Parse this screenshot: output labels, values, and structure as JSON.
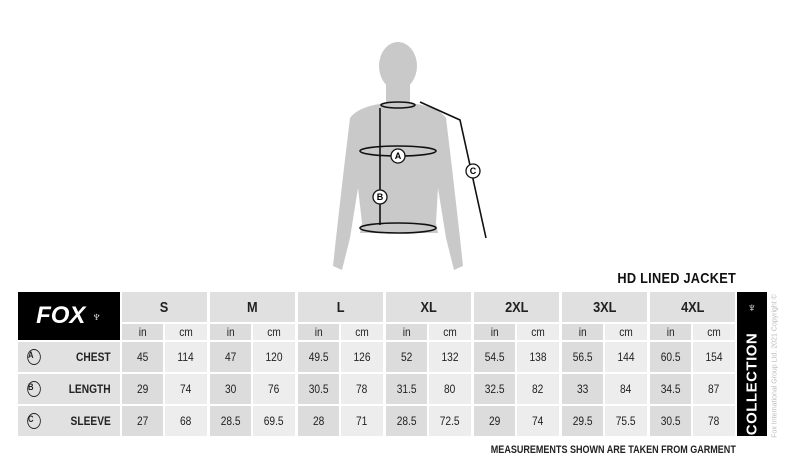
{
  "title": "HD LINED JACKET",
  "brand": "FOX",
  "collection": "COLLECTION",
  "copyright": "Fox International Group Ltd. 2021 Copyright ©",
  "note": "MEASUREMENTS SHOWN ARE TAKEN FROM GARMENT",
  "figure_labels": [
    "A",
    "B",
    "C"
  ],
  "sizes": [
    "S",
    "M",
    "L",
    "XL",
    "2XL",
    "3XL",
    "4XL"
  ],
  "units": [
    "in",
    "cm"
  ],
  "rows": [
    {
      "marker": "A",
      "label": "CHEST",
      "values": [
        "45",
        "114",
        "47",
        "120",
        "49.5",
        "126",
        "52",
        "132",
        "54.5",
        "138",
        "56.5",
        "144",
        "60.5",
        "154"
      ]
    },
    {
      "marker": "B",
      "label": "LENGTH",
      "values": [
        "29",
        "74",
        "30",
        "76",
        "30.5",
        "78",
        "31.5",
        "80",
        "32.5",
        "82",
        "33",
        "84",
        "34.5",
        "87"
      ]
    },
    {
      "marker": "C",
      "label": "SLEEVE",
      "values": [
        "27",
        "68",
        "28.5",
        "69.5",
        "28",
        "71",
        "28.5",
        "72.5",
        "29",
        "74",
        "29.5",
        "75.5",
        "30.5",
        "78"
      ]
    }
  ]
}
